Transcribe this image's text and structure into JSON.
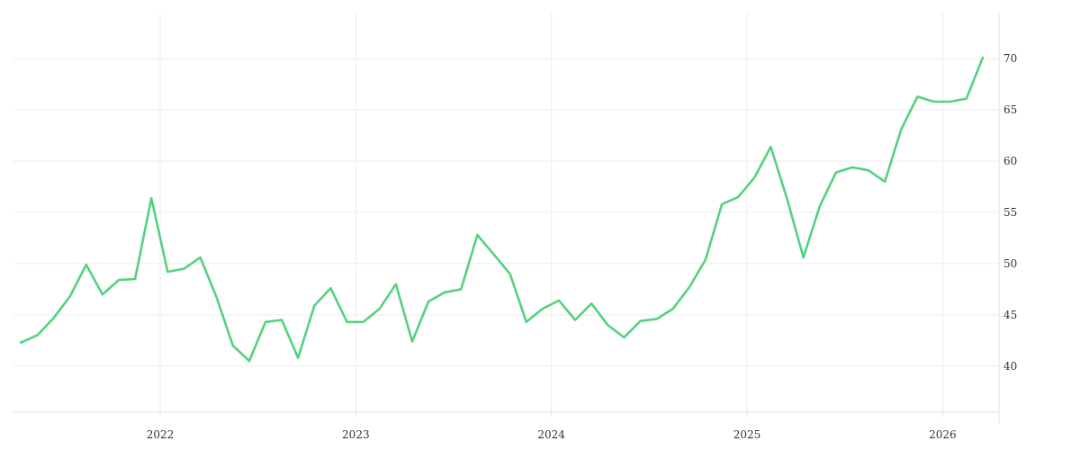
{
  "chart_data": {
    "type": "line",
    "title": "",
    "xlabel": "",
    "ylabel": "",
    "x_ticks": [
      "2022",
      "2023",
      "2024",
      "2025",
      "2026"
    ],
    "y_ticks": [
      40,
      45,
      50,
      55,
      60,
      65,
      70
    ],
    "ylim": [
      35.5,
      74.5
    ],
    "xlim": [
      "2021-04-01",
      "2026-04-15"
    ],
    "grid": true,
    "legend": "none",
    "y_axis_side": "right",
    "colors": {
      "line": "#55d17f",
      "grid": "#ececec",
      "text": "#333333"
    },
    "series": [
      {
        "x": [
          "2021-04",
          "2021-05",
          "2021-06",
          "2021-07",
          "2021-08",
          "2021-09",
          "2021-10",
          "2021-11",
          "2021-12",
          "2022-01",
          "2022-02",
          "2022-03",
          "2022-04",
          "2022-05",
          "2022-06",
          "2022-07",
          "2022-08",
          "2022-09",
          "2022-10",
          "2022-11",
          "2022-12",
          "2023-01",
          "2023-02",
          "2023-03",
          "2023-04",
          "2023-05",
          "2023-06",
          "2023-07",
          "2023-08",
          "2023-09",
          "2023-10",
          "2023-11",
          "2023-12",
          "2024-01",
          "2024-02",
          "2024-03",
          "2024-04",
          "2024-05",
          "2024-06",
          "2024-07",
          "2024-08",
          "2024-09",
          "2024-10",
          "2024-11",
          "2024-12",
          "2025-01",
          "2025-02",
          "2025-03",
          "2025-04",
          "2025-05",
          "2025-06",
          "2025-07",
          "2025-08",
          "2025-09",
          "2025-10",
          "2025-11",
          "2025-12",
          "2026-01",
          "2026-02",
          "2026-03"
        ],
        "values": [
          42.3,
          43.0,
          44.7,
          46.8,
          49.9,
          47.0,
          48.4,
          48.5,
          56.4,
          49.2,
          49.5,
          50.6,
          46.7,
          42.0,
          40.5,
          44.3,
          44.5,
          40.8,
          45.9,
          47.6,
          44.3,
          44.3,
          45.6,
          48.0,
          42.4,
          46.3,
          47.2,
          47.5,
          52.8,
          50.9,
          49.0,
          44.3,
          45.6,
          46.4,
          44.5,
          46.1,
          44.0,
          42.8,
          44.4,
          44.6,
          45.6,
          47.7,
          50.4,
          55.8,
          56.5,
          58.4,
          61.4,
          56.3,
          50.6,
          55.6,
          58.9,
          59.4,
          59.1,
          58.0,
          63.1,
          66.3,
          65.8,
          65.8,
          66.1,
          70.1
        ]
      }
    ]
  }
}
